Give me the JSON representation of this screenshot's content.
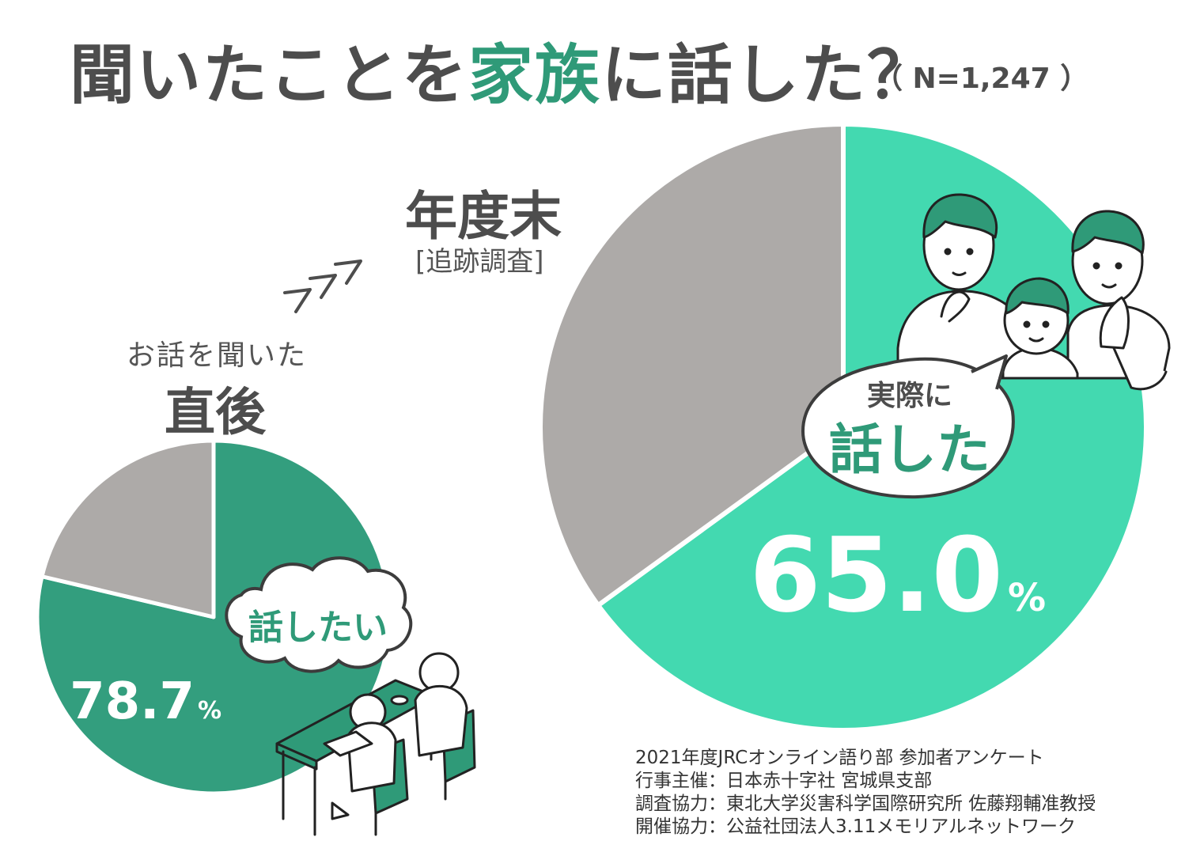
{
  "title": {
    "pre": "聞いたことを",
    "accent": "家族",
    "post": "に話した？",
    "sample_size": "（ N=1,247 ）"
  },
  "labels": {
    "small_pre": "お話を聞いた",
    "small_main": "直後",
    "big_main": "年度末",
    "big_sub": "[追跡調査]",
    "small_bubble": "話したい",
    "big_bubble_line1": "実際に",
    "big_bubble_line2": "話した"
  },
  "chart_data": [
    {
      "type": "pie",
      "title": "お話を聞いた 直後",
      "categories": [
        "話したい",
        ""
      ],
      "values": [
        78.7,
        21.3
      ],
      "value_label": "78.7",
      "unit": "%",
      "colors": [
        "#339e7e",
        "#adaaa8"
      ]
    },
    {
      "type": "pie",
      "title": "年度末 [追跡調査]",
      "categories": [
        "実際に話した",
        ""
      ],
      "values": [
        65.0,
        35.0
      ],
      "value_label": "65.0",
      "unit": "%",
      "colors": [
        "#43d9b0",
        "#adaaa8"
      ]
    }
  ],
  "footnote": [
    "2021年度JRCオンライン語り部 参加者アンケート",
    "行事主催：日本赤十字社 宮城県支部",
    "調査協力：東北大学災害科学国際研究所 佐藤翔輔准教授",
    "開催協力：公益社団法人3.11メモリアルネットワーク"
  ]
}
